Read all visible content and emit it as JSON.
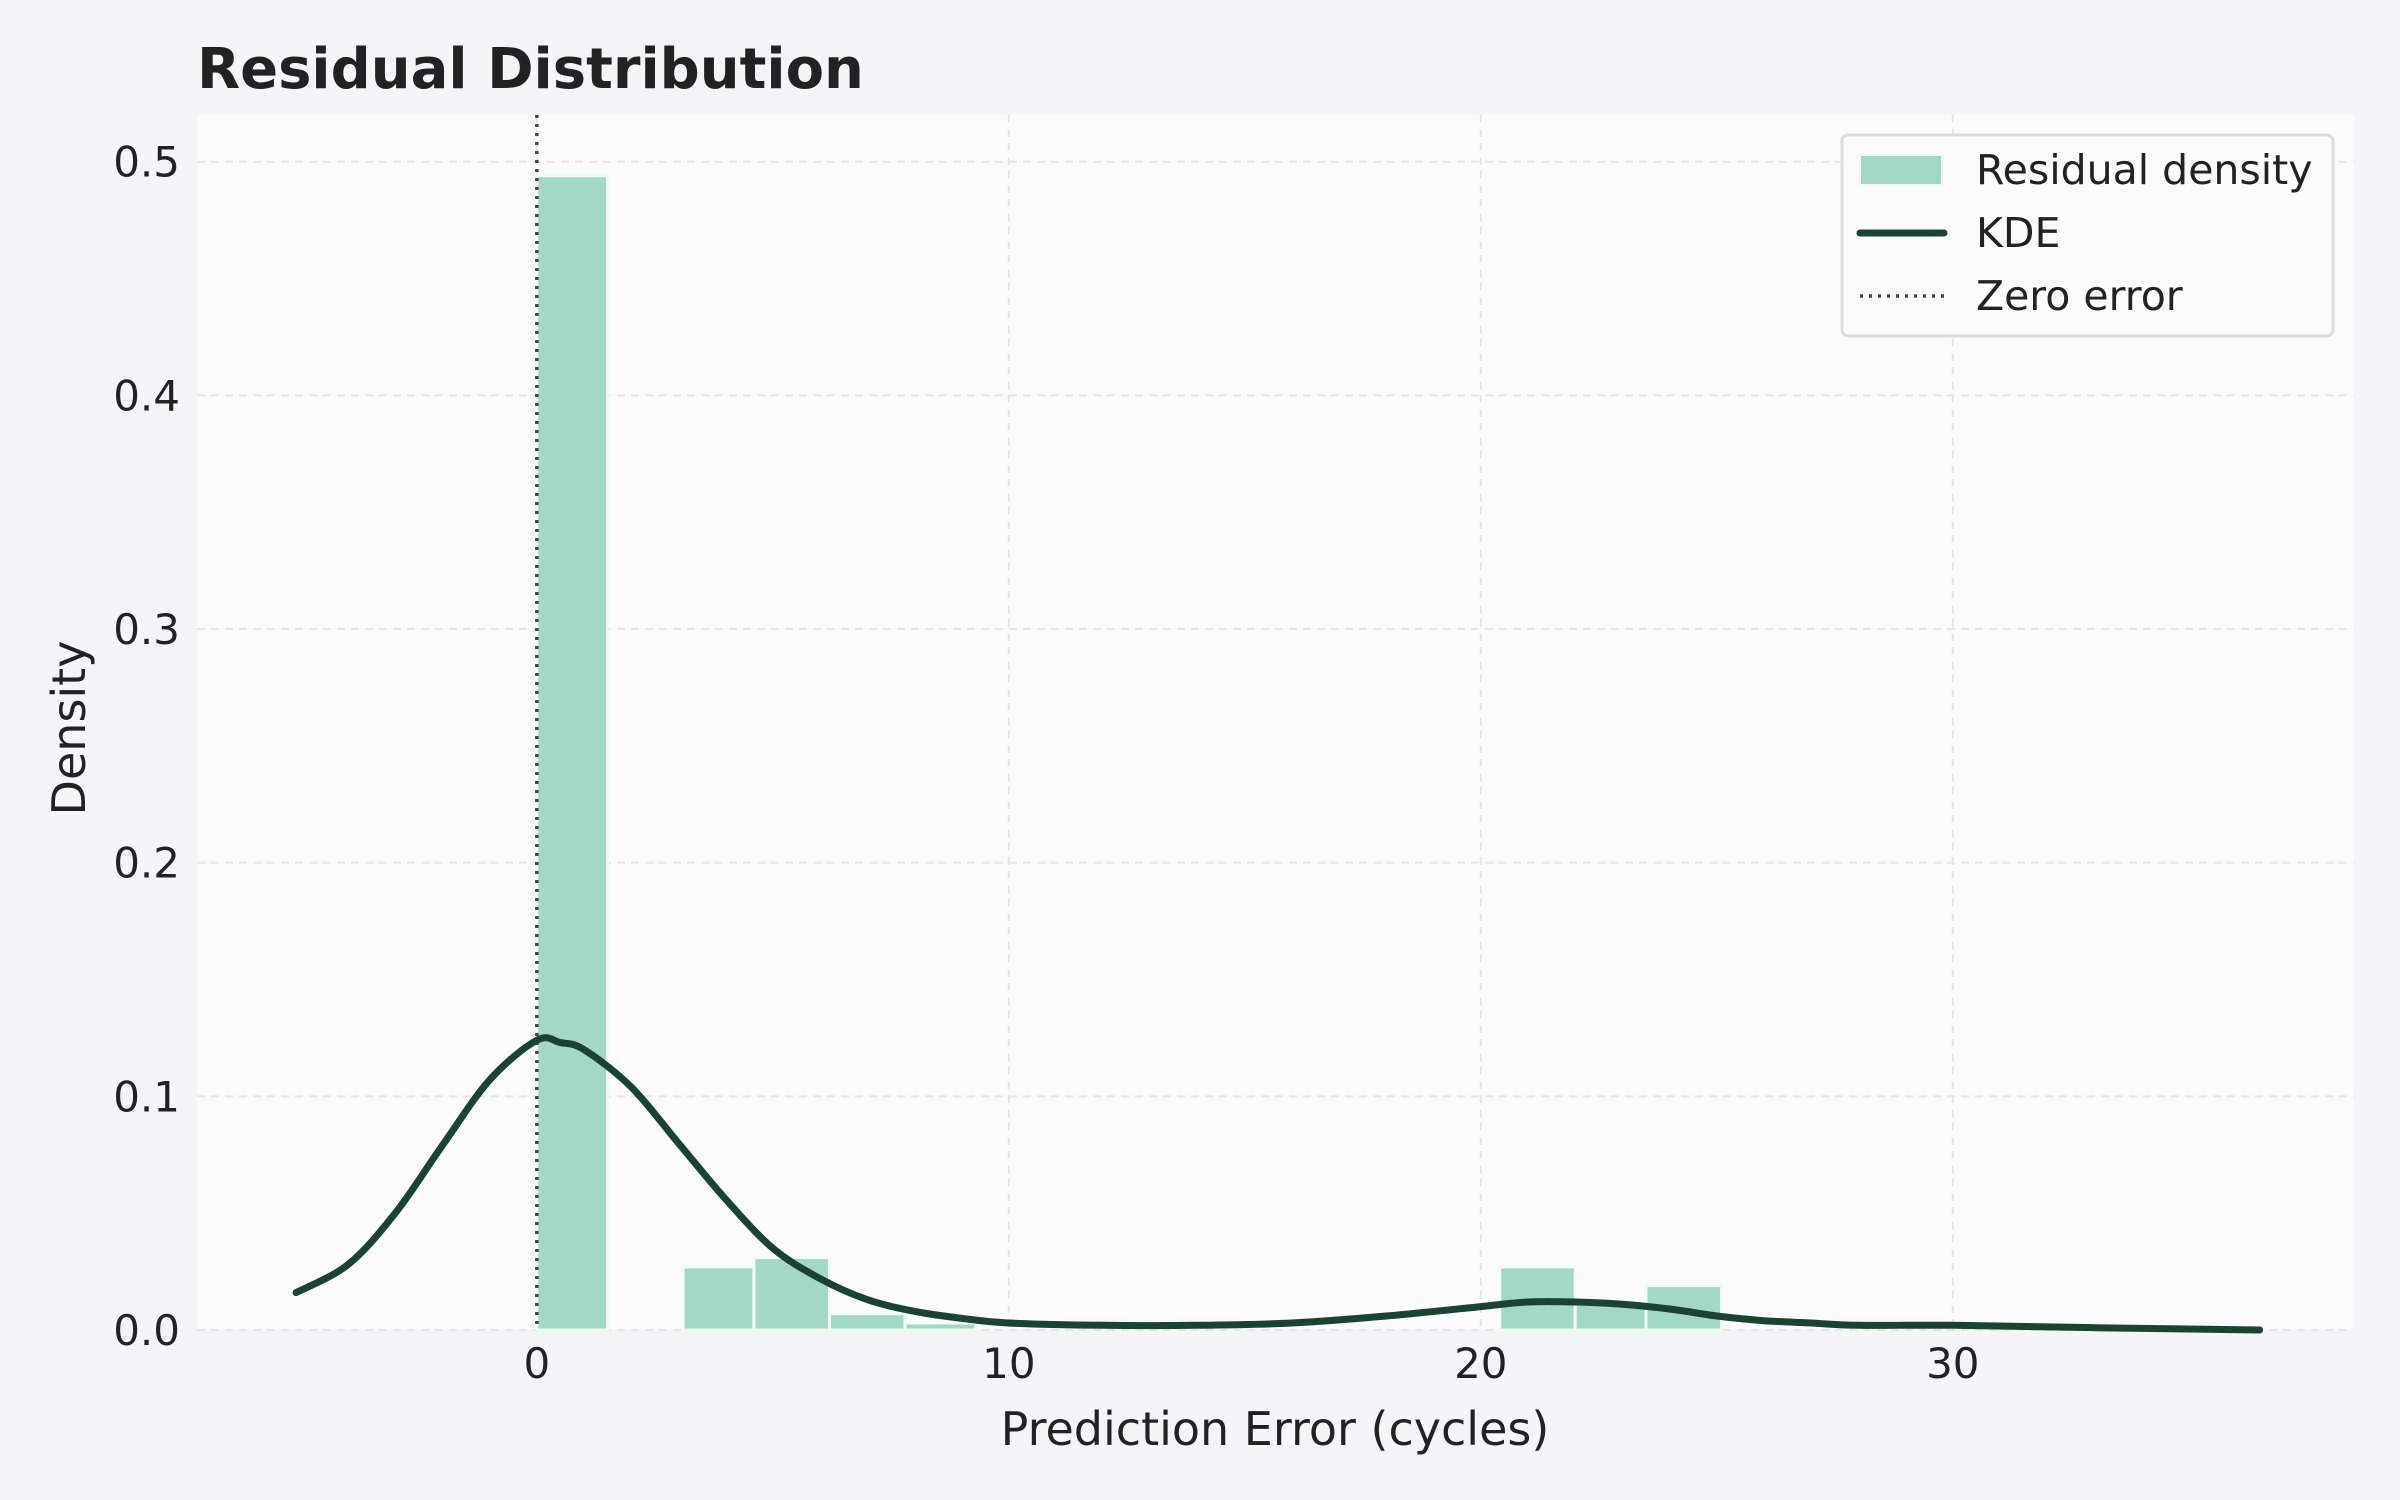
{
  "chart_data": {
    "type": "bar",
    "title": "Residual Distribution",
    "xlabel": "Prediction Error (cycles)",
    "ylabel": "Density",
    "xlim": [
      -7.2,
      38.5
    ],
    "ylim": [
      0,
      0.52
    ],
    "xticks": [
      0,
      10,
      20,
      30
    ],
    "yticks": [
      0.0,
      0.1,
      0.2,
      0.3,
      0.4,
      0.5
    ],
    "xtick_labels": [
      "0",
      "10",
      "20",
      "30"
    ],
    "ytick_labels": [
      "0.0",
      "0.1",
      "0.2",
      "0.3",
      "0.4",
      "0.5"
    ],
    "grid": true,
    "legend_position": "top-right",
    "histogram": {
      "name": "Residual density",
      "color": "#a3d9c2",
      "bins": [
        {
          "x0": 0.0,
          "x1": 1.5,
          "density": 0.494
        },
        {
          "x0": 3.1,
          "x1": 4.6,
          "density": 0.027
        },
        {
          "x0": 4.6,
          "x1": 6.2,
          "density": 0.031
        },
        {
          "x0": 6.2,
          "x1": 7.8,
          "density": 0.007
        },
        {
          "x0": 7.8,
          "x1": 9.3,
          "density": 0.003
        },
        {
          "x0": 20.4,
          "x1": 22.0,
          "density": 0.027
        },
        {
          "x0": 22.0,
          "x1": 23.5,
          "density": 0.011
        },
        {
          "x0": 23.5,
          "x1": 25.1,
          "density": 0.019
        }
      ]
    },
    "kde": {
      "name": "KDE",
      "color": "#1b4332",
      "x": [
        -5.1,
        -4.0,
        -3.0,
        -2.0,
        -1.0,
        0.0,
        0.5,
        1.0,
        2.0,
        3.0,
        4.0,
        5.0,
        6.0,
        7.0,
        8.0,
        9.0,
        10.0,
        12.0,
        14.0,
        16.0,
        18.0,
        20.0,
        21.0,
        22.0,
        23.0,
        24.0,
        25.0,
        26.0,
        27.0,
        28.0,
        30.0,
        33.0,
        36.5
      ],
      "y": [
        0.016,
        0.028,
        0.05,
        0.079,
        0.107,
        0.124,
        0.123,
        0.12,
        0.104,
        0.08,
        0.056,
        0.035,
        0.022,
        0.013,
        0.008,
        0.005,
        0.003,
        0.002,
        0.002,
        0.003,
        0.006,
        0.01,
        0.012,
        0.012,
        0.011,
        0.009,
        0.006,
        0.004,
        0.003,
        0.002,
        0.002,
        0.001,
        0.0
      ]
    },
    "zero_line": {
      "name": "Zero error",
      "x": 0,
      "color": "#444444"
    }
  }
}
